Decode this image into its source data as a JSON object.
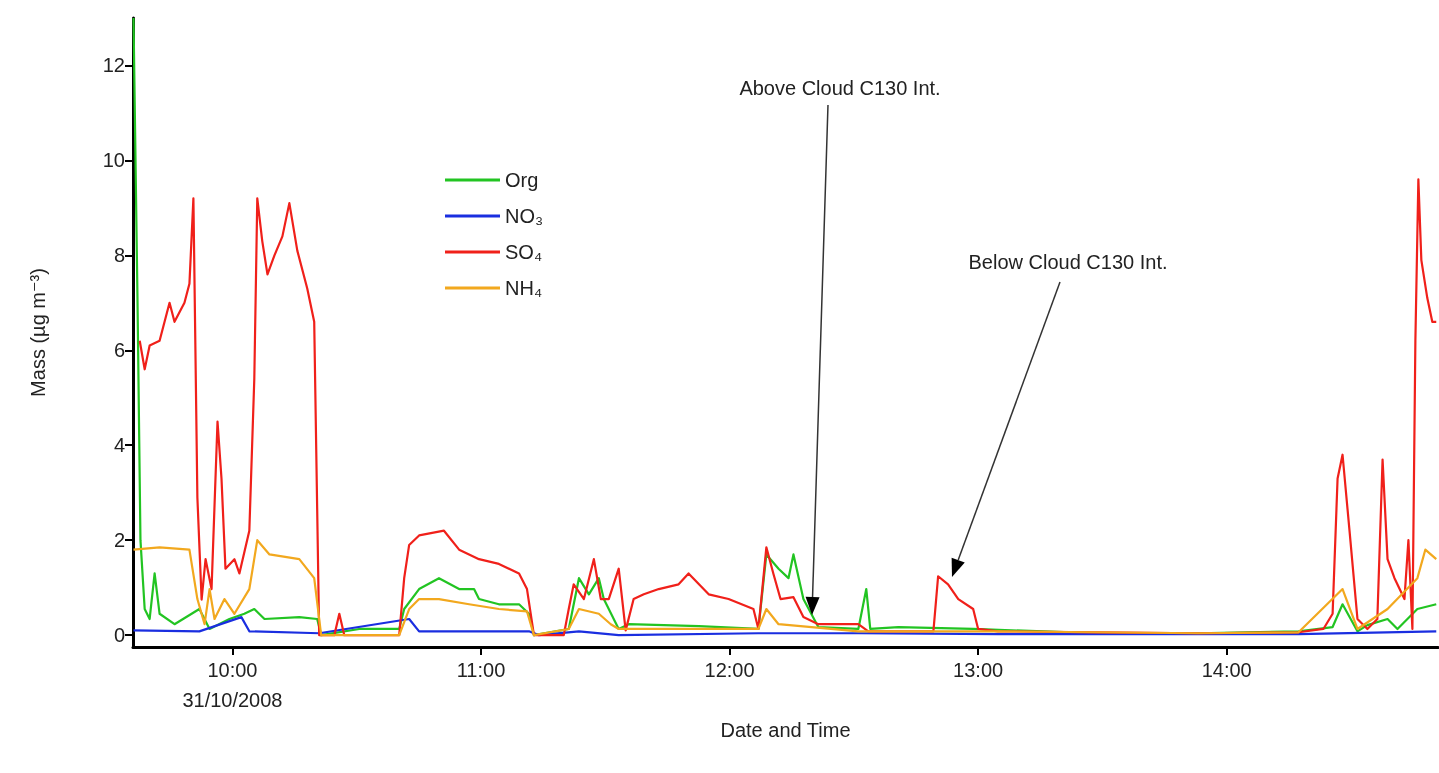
{
  "chart_data": {
    "type": "line",
    "xlabel": "Date and Time",
    "ylabel": "Mass (µg m⁻³)",
    "xlim": [
      9.6,
      14.85
    ],
    "ylim": [
      -0.25,
      13
    ],
    "xticks": [
      {
        "value": 10,
        "label": "10:00\n31/10/2008"
      },
      {
        "value": 11,
        "label": "11:00"
      },
      {
        "value": 12,
        "label": "12:00"
      },
      {
        "value": 13,
        "label": "13:00"
      },
      {
        "value": 14,
        "label": "14:00"
      }
    ],
    "yticks": [
      0,
      2,
      4,
      6,
      8,
      10,
      12
    ],
    "grid": false,
    "legend": "top left",
    "marker": "none",
    "line_style": "solid",
    "series": [
      {
        "name": "Org",
        "color": "#22c422",
        "x": [
          9.602,
          9.618,
          9.63,
          9.647,
          9.667,
          9.687,
          9.707,
          9.767,
          9.867,
          9.908,
          9.988,
          10.048,
          10.088,
          10.129,
          10.269,
          10.341,
          10.357,
          10.51,
          10.671,
          10.691,
          10.751,
          10.831,
          10.912,
          10.972,
          10.992,
          11.072,
          11.153,
          11.193,
          11.213,
          11.353,
          11.394,
          11.434,
          11.474,
          11.494,
          11.554,
          11.594,
          11.876,
          12.116,
          12.148,
          12.197,
          12.237,
          12.257,
          12.297,
          12.357,
          12.518,
          12.55,
          12.566,
          12.679,
          12.98,
          13.482,
          13.884,
          14.289,
          14.426,
          14.466,
          14.526,
          14.566,
          14.647,
          14.687,
          14.767,
          14.843
        ],
        "values": [
          13,
          7.1,
          2.0,
          0.55,
          0.34,
          1.3,
          0.45,
          0.23,
          0.55,
          0.13,
          0.34,
          0.45,
          0.55,
          0.34,
          0.38,
          0.34,
          0,
          0.13,
          0.13,
          0.55,
          0.97,
          1.2,
          0.97,
          0.97,
          0.76,
          0.65,
          0.65,
          0.45,
          0,
          0.13,
          1.2,
          0.86,
          1.2,
          0.76,
          0.13,
          0.23,
          0.19,
          0.13,
          1.7,
          1.4,
          1.2,
          1.7,
          0.76,
          0.17,
          0.13,
          0.97,
          0.13,
          0.17,
          0.13,
          0.04,
          0.04,
          0.08,
          0.17,
          0.65,
          0.08,
          0.21,
          0.34,
          0.13,
          0.55,
          0.65
        ]
      },
      {
        "name": "NO₃",
        "color": "#1a2ee0",
        "x": [
          9.602,
          9.867,
          10.036,
          10.068,
          10.349,
          10.711,
          10.751,
          11.193,
          11.233,
          11.394,
          11.554,
          12.116,
          12.518,
          13.08,
          14.289,
          14.843
        ],
        "values": [
          0.1,
          0.08,
          0.38,
          0.08,
          0.04,
          0.34,
          0.08,
          0.08,
          0,
          0.08,
          0,
          0.04,
          0.04,
          0.02,
          0.02,
          0.08
        ]
      },
      {
        "name": "SO₄",
        "color": "#f0201a",
        "x": [
          9.627,
          9.647,
          9.667,
          9.707,
          9.747,
          9.767,
          9.807,
          9.827,
          9.843,
          9.859,
          9.876,
          9.892,
          9.916,
          9.94,
          9.956,
          9.972,
          10.008,
          10.028,
          10.068,
          10.088,
          10.1,
          10.12,
          10.141,
          10.169,
          10.201,
          10.229,
          10.261,
          10.301,
          10.329,
          10.349,
          10.41,
          10.43,
          10.45,
          10.671,
          10.691,
          10.711,
          10.751,
          10.851,
          10.912,
          10.992,
          11.072,
          11.153,
          11.185,
          11.213,
          11.333,
          11.353,
          11.373,
          11.414,
          11.454,
          11.482,
          11.514,
          11.554,
          11.582,
          11.614,
          11.655,
          11.715,
          11.795,
          11.835,
          11.916,
          11.996,
          12.096,
          12.116,
          12.148,
          12.176,
          12.205,
          12.257,
          12.297,
          12.357,
          12.518,
          12.558,
          12.82,
          12.839,
          12.879,
          12.92,
          12.98,
          13.0,
          13.08,
          13.482,
          13.884,
          14.289,
          14.389,
          14.426,
          14.446,
          14.466,
          14.494,
          14.526,
          14.566,
          14.606,
          14.627,
          14.647,
          14.675,
          14.715,
          14.731,
          14.747,
          14.759,
          14.771,
          14.783,
          14.807,
          14.827,
          14.843
        ],
        "values": [
          6.2,
          5.6,
          6.1,
          6.2,
          7.0,
          6.6,
          7.0,
          7.4,
          9.2,
          2.9,
          0.75,
          1.6,
          0.97,
          4.5,
          3.3,
          1.4,
          1.6,
          1.3,
          2.2,
          5.4,
          9.2,
          8.3,
          7.6,
          8.0,
          8.4,
          9.1,
          8.1,
          7.3,
          6.6,
          0,
          0,
          0.45,
          0,
          0,
          1.2,
          1.9,
          2.1,
          2.2,
          1.8,
          1.6,
          1.5,
          1.3,
          0.97,
          0,
          0,
          0.55,
          1.07,
          0.76,
          1.6,
          0.76,
          0.76,
          1.4,
          0.1,
          0.76,
          0.86,
          0.97,
          1.07,
          1.3,
          0.86,
          0.76,
          0.55,
          0.13,
          1.85,
          1.3,
          0.76,
          0.8,
          0.38,
          0.23,
          0.23,
          0.08,
          0.08,
          1.24,
          1.07,
          0.76,
          0.55,
          0.13,
          0.08,
          0.06,
          0.04,
          0.06,
          0.13,
          0.45,
          3.3,
          3.8,
          2.2,
          0.34,
          0.13,
          0.34,
          3.7,
          1.6,
          1.2,
          0.76,
          2.0,
          0.13,
          6.2,
          9.6,
          7.9,
          7.1,
          6.6,
          6.6
        ]
      },
      {
        "name": "NH₄",
        "color": "#f2a81e",
        "x": [
          9.602,
          9.707,
          9.827,
          9.859,
          9.888,
          9.908,
          9.928,
          9.968,
          10.008,
          10.068,
          10.1,
          10.149,
          10.269,
          10.329,
          10.357,
          10.671,
          10.711,
          10.751,
          10.831,
          10.952,
          11.072,
          11.185,
          11.213,
          11.353,
          11.394,
          11.474,
          11.522,
          11.554,
          11.715,
          12.116,
          12.148,
          12.197,
          12.518,
          13.08,
          13.884,
          14.289,
          14.466,
          14.526,
          14.647,
          14.767,
          14.799,
          14.843
        ],
        "values": [
          1.8,
          1.85,
          1.8,
          0.76,
          0.23,
          0.97,
          0.34,
          0.76,
          0.45,
          0.97,
          2.0,
          1.7,
          1.6,
          1.2,
          0,
          0,
          0.55,
          0.76,
          0.76,
          0.65,
          0.55,
          0.5,
          0,
          0.13,
          0.55,
          0.45,
          0.23,
          0.13,
          0.13,
          0.13,
          0.55,
          0.23,
          0.08,
          0.08,
          0.04,
          0.06,
          0.97,
          0.13,
          0.55,
          1.2,
          1.8,
          1.6
        ]
      }
    ],
    "annotations": [
      "Above Cloud C130 Int.",
      "Below Cloud C130 Int."
    ]
  }
}
